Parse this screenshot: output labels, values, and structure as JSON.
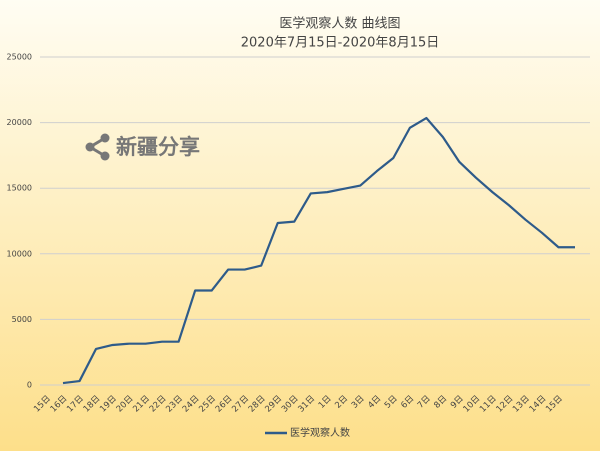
{
  "chart_data": {
    "type": "line",
    "title": "医学观察人数 曲线图",
    "subtitle": "2020年7月15日-2020年8月15日",
    "annotation": "新疆分享",
    "categories": [
      "15日",
      "16日",
      "17日",
      "18日",
      "19日",
      "20日",
      "21日",
      "22日",
      "23日",
      "24日",
      "25日",
      "26日",
      "27日",
      "28日",
      "29日",
      "30日",
      "31日",
      "1日",
      "2日",
      "3日",
      "4日",
      "5日",
      "6日",
      "7日",
      "8日",
      "9日",
      "10日",
      "11日",
      "12日",
      "13日",
      "14日",
      "15日"
    ],
    "series": [
      {
        "name": "医学观察人数",
        "color": "#2e5b8a",
        "values": [
          150,
          300,
          2750,
          3050,
          3150,
          3150,
          3300,
          3300,
          7200,
          7200,
          8800,
          8800,
          9100,
          12350,
          12450,
          14600,
          14700,
          14950,
          15200,
          16300,
          17300,
          19600,
          20350,
          18900,
          17000,
          15800,
          14700,
          13700,
          12600,
          11600,
          10500,
          10500
        ]
      }
    ],
    "ylim": [
      0,
      25000
    ],
    "yticks": [
      0,
      5000,
      10000,
      15000,
      20000,
      25000
    ],
    "grid": true,
    "legend": "bottom"
  }
}
